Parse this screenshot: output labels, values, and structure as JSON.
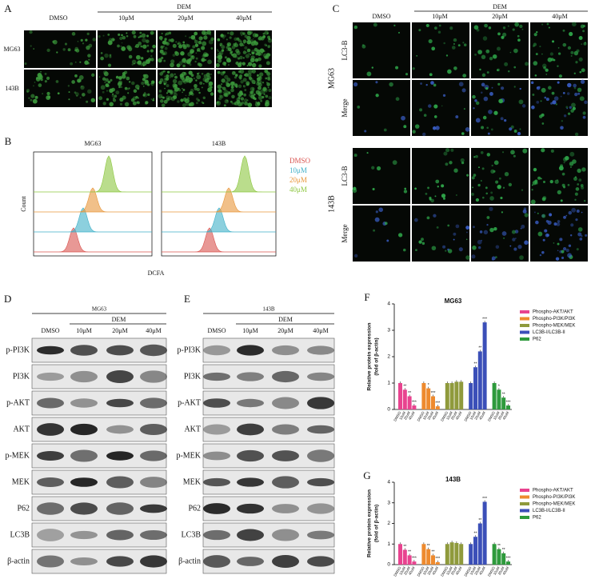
{
  "panels": {
    "A": {
      "label": "A",
      "group": "DEM",
      "columns": [
        "DMSO",
        "10μM",
        "20μM",
        "40μM"
      ],
      "rows": [
        "MG63",
        "143B"
      ]
    },
    "B": {
      "label": "B",
      "plots": [
        "MG63",
        "143B"
      ],
      "legend": [
        "DMSO",
        "10μM",
        "20μM",
        "40μM"
      ],
      "legend_colors": [
        "#d9534f",
        "#3fb0c8",
        "#e8963a",
        "#8cc63f"
      ],
      "y_label": "Count",
      "x_label": "DCFA"
    },
    "C": {
      "label": "C",
      "group": "DEM",
      "columns": [
        "DMSO",
        "10μM",
        "20μM",
        "40μM"
      ],
      "cell_lines": [
        "MG63",
        "143B"
      ],
      "rows": [
        "LC3-B",
        "Merge"
      ]
    },
    "D": {
      "label": "D",
      "cell_line": "MG63",
      "group": "DEM",
      "columns": [
        "DMSO",
        "10μM",
        "20μM",
        "40μM"
      ],
      "proteins": [
        "p-PI3K",
        "PI3K",
        "p-AKT",
        "AKT",
        "p-MEK",
        "MEK",
        "P62",
        "LC3B",
        "β-actin"
      ]
    },
    "E": {
      "label": "E",
      "cell_line": "143B",
      "group": "DEM",
      "columns": [
        "DMSO",
        "10μM",
        "20μM",
        "40μM"
      ],
      "proteins": [
        "p-PI3K",
        "PI3K",
        "p-AKT",
        "AKT",
        "p-MEK",
        "MEK",
        "P62",
        "LC3B",
        "β-actin"
      ]
    },
    "F": {
      "label": "F"
    },
    "G": {
      "label": "G"
    }
  },
  "chart_data": [
    {
      "type": "bar",
      "title": "MG63",
      "ylabel": [
        "Relative protein expression",
        "(fold of β-actin)"
      ],
      "categories": [
        "DMSO",
        "10uM",
        "20uM",
        "40uM"
      ],
      "ylim": [
        0,
        4
      ],
      "yticks": [
        0,
        1,
        2,
        3,
        4
      ],
      "series": [
        {
          "name": "Phospho-AKT/AKT",
          "color": "#e8438f",
          "values": [
            1.0,
            0.75,
            0.5,
            0.15
          ],
          "significance": [
            null,
            "**",
            "**",
            "***"
          ]
        },
        {
          "name": "Phospho-PI3K/PI3K",
          "color": "#ee8a2e",
          "values": [
            1.0,
            0.8,
            0.5,
            0.12
          ],
          "significance": [
            null,
            "*",
            "***",
            "***"
          ]
        },
        {
          "name": "Phospho-MEK/MEK",
          "color": "#8f9a3c",
          "values": [
            1.0,
            1.0,
            1.05,
            1.05
          ],
          "significance": [
            null,
            null,
            null,
            null
          ]
        },
        {
          "name": "LC3B-I/LC3B-II",
          "color": "#3b4fb8",
          "values": [
            1.0,
            1.6,
            2.2,
            3.3
          ],
          "significance": [
            null,
            "**",
            "**",
            "***"
          ]
        },
        {
          "name": "P62",
          "color": "#2e9a3c",
          "values": [
            1.0,
            0.75,
            0.45,
            0.15
          ],
          "significance": [
            null,
            "*",
            "**",
            "***"
          ]
        }
      ]
    },
    {
      "type": "bar",
      "title": "143B",
      "ylabel": [
        "Relative protein expression",
        "(fold of β-actin)"
      ],
      "categories": [
        "DMSO",
        "10uM",
        "20uM",
        "40uM"
      ],
      "ylim": [
        0,
        4
      ],
      "yticks": [
        0,
        1,
        2,
        3,
        4
      ],
      "series": [
        {
          "name": "Phospho-AKT/AKT",
          "color": "#e8438f",
          "values": [
            1.0,
            0.72,
            0.45,
            0.15
          ],
          "significance": [
            null,
            "**",
            "**",
            "***"
          ]
        },
        {
          "name": "Phospho-PI3K/PI3K",
          "color": "#ee8a2e",
          "values": [
            1.0,
            0.75,
            0.45,
            0.12
          ],
          "significance": [
            null,
            "**",
            "**",
            "***"
          ]
        },
        {
          "name": "Phospho-MEK/MEK",
          "color": "#8f9a3c",
          "values": [
            1.0,
            1.08,
            1.05,
            1.0
          ],
          "significance": [
            null,
            null,
            null,
            null
          ]
        },
        {
          "name": "LC3B-I/LC3B-II",
          "color": "#3b4fb8",
          "values": [
            1.0,
            1.35,
            2.0,
            3.05
          ],
          "significance": [
            null,
            "**",
            "**",
            "***"
          ]
        },
        {
          "name": "P62",
          "color": "#2e9a3c",
          "values": [
            1.0,
            0.75,
            0.55,
            0.15
          ],
          "significance": [
            null,
            "**",
            "**",
            "***"
          ]
        }
      ]
    }
  ]
}
